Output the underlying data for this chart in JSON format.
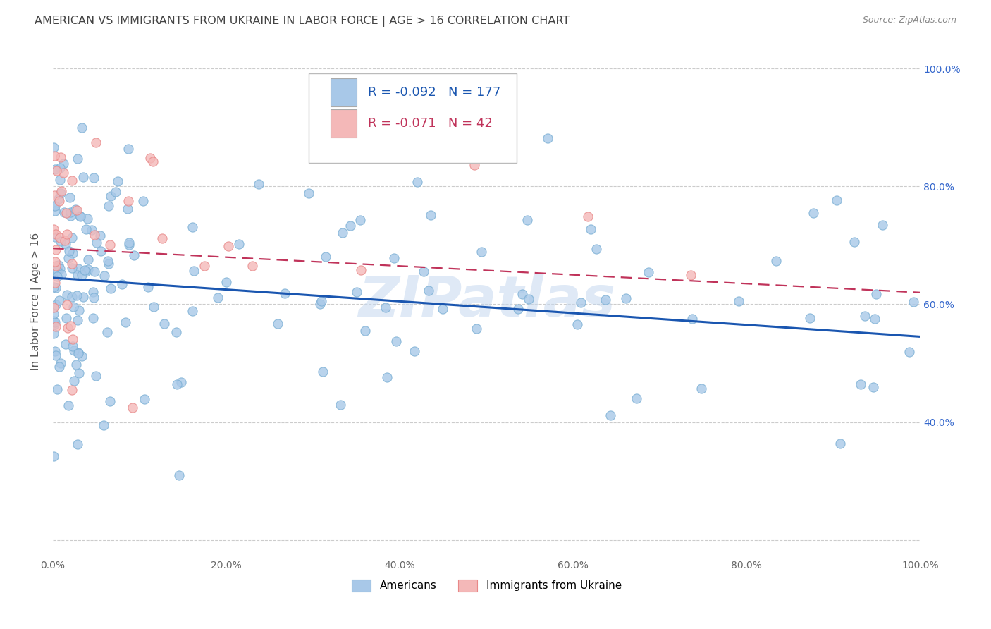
{
  "title": "AMERICAN VS IMMIGRANTS FROM UKRAINE IN LABOR FORCE | AGE > 16 CORRELATION CHART",
  "source_text": "Source: ZipAtlas.com",
  "ylabel": "In Labor Force | Age > 16",
  "legend_label1": "Americans",
  "legend_label2": "Immigrants from Ukraine",
  "r1": -0.092,
  "n1": 177,
  "r2": -0.071,
  "n2": 42,
  "watermark": "ZIPatlas",
  "blue_dot_color": "#a8c8e8",
  "blue_dot_edge": "#7aafd4",
  "pink_dot_color": "#f4b8b8",
  "pink_dot_edge": "#e88888",
  "blue_line_color": "#1a56b0",
  "pink_line_color": "#c0335a",
  "blue_text_color": "#1a56b0",
  "pink_text_color": "#c0335a",
  "title_color": "#444444",
  "source_color": "#888888",
  "grid_color": "#cccccc",
  "right_label_color": "#3366cc",
  "watermark_color": "#c5d8ef",
  "x_min": 0.0,
  "x_max": 1.0,
  "y_min": 0.17,
  "y_max": 1.04,
  "blue_line_x0": 0.0,
  "blue_line_y0": 0.645,
  "blue_line_x1": 1.0,
  "blue_line_y1": 0.545,
  "pink_line_x0": 0.0,
  "pink_line_y0": 0.695,
  "pink_line_x1": 1.0,
  "pink_line_y1": 0.62
}
